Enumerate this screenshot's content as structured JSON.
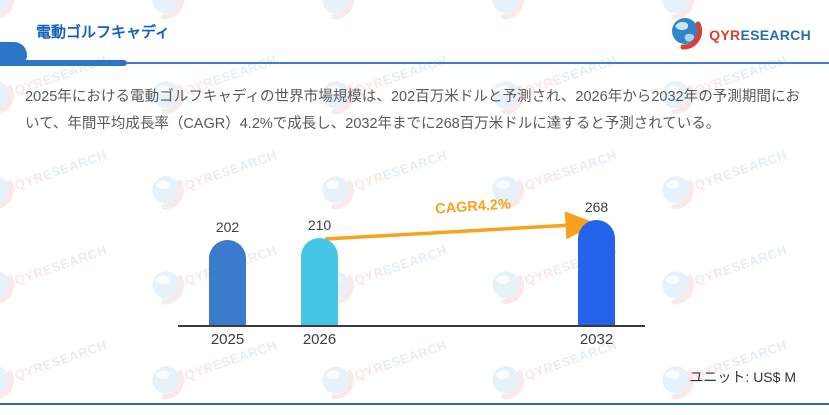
{
  "page": {
    "title": "電動ゴルフキャディ"
  },
  "logo": {
    "prefix": "QYR",
    "suffix": "ESEARCH"
  },
  "summary": "2025年における電動ゴルフキャディの世界市場規模は、202百万米ドルと予測され、2026年から2032年の予測期間において、年間平均成長率（CAGR）4.2%で成長し、2032年までに268百万米ドルに達すると予測されている。",
  "chart_data": {
    "type": "bar",
    "categories": [
      "2025",
      "2026",
      "2032"
    ],
    "values": [
      202,
      210,
      268
    ],
    "title": "",
    "xlabel": "",
    "ylabel": "",
    "unit_label": "ユニット: US$ M",
    "cagr_label": "CAGR4.2%",
    "bar_colors": [
      "#3a7bcd",
      "#45c6e6",
      "#2563eb"
    ],
    "arrow_color": "#f9a11c",
    "grid": false,
    "legend": "none",
    "y_axis_visible": false,
    "annotations": [
      "CAGR4.2%"
    ]
  },
  "colors": {
    "title_blue": "#1460be",
    "header_line": "#2e75c8",
    "text_gray": "#595959",
    "axis": "#3a3a3a",
    "footer_line": "#2e6da4",
    "logo_red": "#d8402f",
    "logo_blue": "#2b6cb0"
  }
}
